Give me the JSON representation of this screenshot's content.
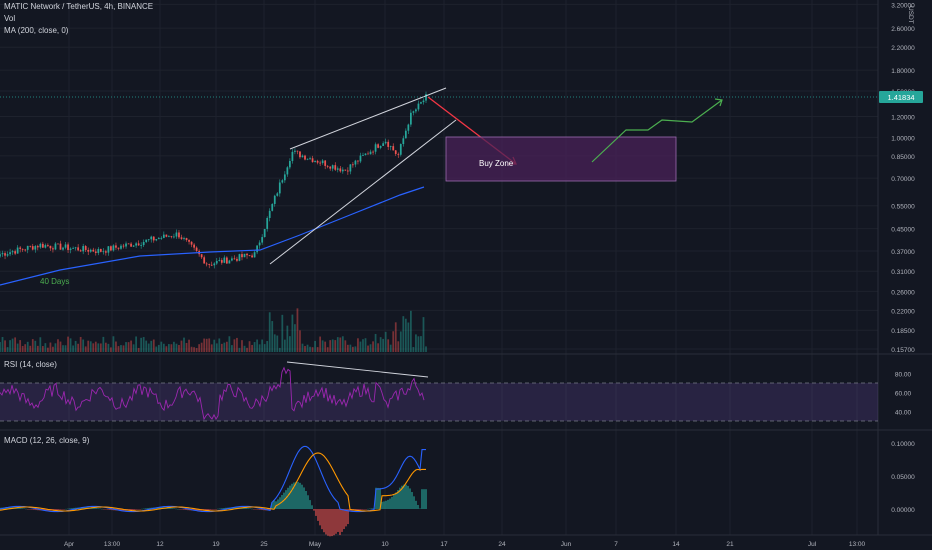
{
  "header": {
    "symbol_line": "MATIC Network / TetherUS, 4h, BINANCE",
    "vol_label": "Vol",
    "ma_label": "MA (200, close, 0)"
  },
  "currency_label": "USDT",
  "price_badge": "1.41834",
  "annotations": {
    "days_label": "40 Days",
    "buy_zone_label": "Buy Zone"
  },
  "rsi": {
    "title": "RSI (14, close)",
    "levels": [
      70,
      30
    ]
  },
  "macd": {
    "title": "MACD (12, 26, close, 9)"
  },
  "colors": {
    "background": "#131722",
    "up_candle": "#26a69a",
    "down_candle": "#ef5350",
    "ma_line": "#2962ff",
    "rsi_line": "#9c27b0",
    "macd_line": "#2962ff",
    "signal_line": "#ff9800",
    "projection_up": "#4caf50",
    "projection_down": "#f23645",
    "buy_zone_fill": "#4a2158",
    "price_badge": "#26a69a"
  },
  "chart_data": [
    {
      "type": "candlestick",
      "scale": "log",
      "price_axis_ticks": [
        "3.20000",
        "2.60000",
        "2.20000",
        "1.80000",
        "1.50000",
        "1.20000",
        "1.00000",
        "0.85000",
        "0.70000",
        "0.55000",
        "0.45000",
        "0.37000",
        "0.31000",
        "0.26000",
        "0.22000",
        "0.18500",
        "0.15700"
      ],
      "time_axis_ticks": [
        "Apr",
        "13:00",
        "12",
        "19",
        "25",
        "May",
        "10",
        "17",
        "24",
        "Jun",
        "7",
        "14",
        "21",
        "Jul",
        "13:00"
      ],
      "price_path": [
        {
          "x": "Mar 31",
          "close": 0.36
        },
        {
          "x": "Apr 6",
          "close": 0.39
        },
        {
          "x": "Apr 13",
          "close": 0.37
        },
        {
          "x": "Apr 18",
          "close": 0.43
        },
        {
          "x": "Apr 20",
          "close": 0.33
        },
        {
          "x": "Apr 24",
          "close": 0.36
        },
        {
          "x": "Apr 26",
          "close": 0.55
        },
        {
          "x": "Apr 28",
          "close": 0.88
        },
        {
          "x": "May 3",
          "close": 0.75
        },
        {
          "x": "May 8",
          "close": 0.98
        },
        {
          "x": "May 10",
          "close": 0.85
        },
        {
          "x": "May 12",
          "close": 1.2
        },
        {
          "x": "May 14",
          "close": 1.42
        }
      ],
      "current_price": 1.41834
    },
    {
      "type": "line",
      "name": "RSI (14, close)",
      "axis_ticks": [
        "80.00",
        "60.00",
        "40.00"
      ],
      "band": [
        30,
        70
      ]
    },
    {
      "type": "line",
      "name": "MACD (12, 26, close, 9)",
      "axis_ticks": [
        "0.10000",
        "0.05000",
        "0.00000"
      ]
    }
  ]
}
